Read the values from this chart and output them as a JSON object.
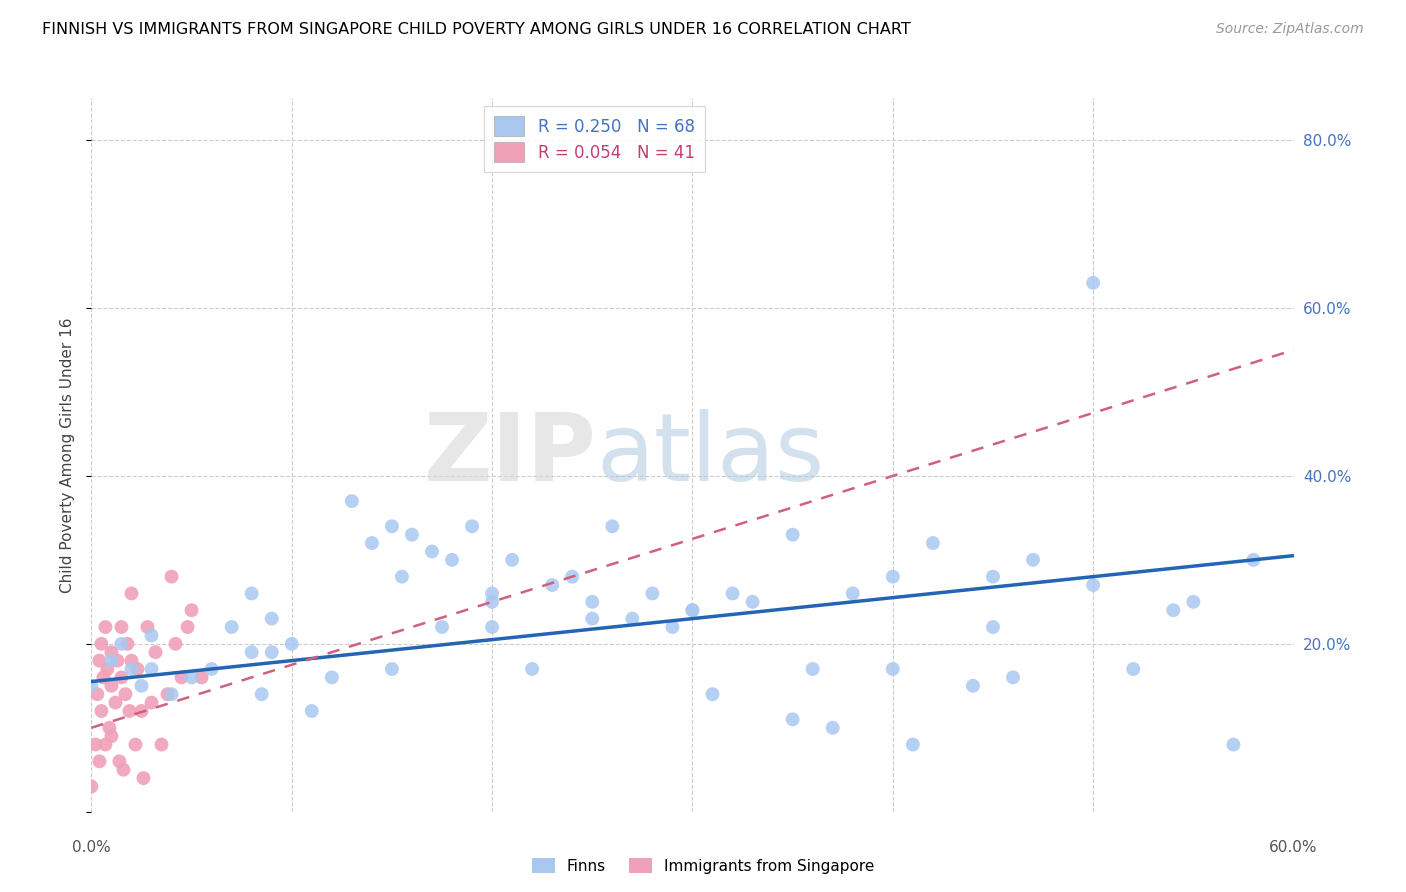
{
  "title": "FINNISH VS IMMIGRANTS FROM SINGAPORE CHILD POVERTY AMONG GIRLS UNDER 16 CORRELATION CHART",
  "source": "Source: ZipAtlas.com",
  "ylabel": "Child Poverty Among Girls Under 16",
  "xlim": [
    0.0,
    0.6
  ],
  "ylim": [
    0.0,
    0.85
  ],
  "grid_yticks": [
    0.0,
    0.2,
    0.4,
    0.6,
    0.8
  ],
  "grid_xticks": [
    0.0,
    0.1,
    0.2,
    0.3,
    0.4,
    0.5,
    0.6
  ],
  "finns_R": 0.25,
  "finns_N": 68,
  "immigrants_R": 0.054,
  "immigrants_N": 41,
  "finn_color": "#a8c8f0",
  "finn_line_color": "#2464b4",
  "immigrant_color": "#f0a0b8",
  "immigrant_line_color": "#d06080",
  "legend_finn_label": "Finns",
  "legend_immigrant_label": "Immigrants from Singapore",
  "finn_line_x0": 0.0,
  "finn_line_y0": 0.155,
  "finn_line_x1": 0.6,
  "finn_line_y1": 0.305,
  "imm_line_x0": 0.0,
  "imm_line_y0": 0.1,
  "imm_line_x1": 0.6,
  "imm_line_y1": 0.55,
  "finns_x": [
    0.0,
    0.01,
    0.015,
    0.02,
    0.025,
    0.03,
    0.04,
    0.05,
    0.06,
    0.07,
    0.08,
    0.085,
    0.09,
    0.1,
    0.11,
    0.12,
    0.13,
    0.14,
    0.15,
    0.155,
    0.16,
    0.17,
    0.175,
    0.18,
    0.19,
    0.2,
    0.2,
    0.21,
    0.22,
    0.23,
    0.24,
    0.25,
    0.26,
    0.27,
    0.28,
    0.29,
    0.3,
    0.31,
    0.32,
    0.33,
    0.35,
    0.36,
    0.37,
    0.38,
    0.4,
    0.41,
    0.42,
    0.44,
    0.45,
    0.46,
    0.47,
    0.5,
    0.52,
    0.54,
    0.55,
    0.57,
    0.58,
    0.09,
    0.15,
    0.2,
    0.25,
    0.3,
    0.35,
    0.4,
    0.45,
    0.5,
    0.03,
    0.08
  ],
  "finns_y": [
    0.15,
    0.18,
    0.2,
    0.17,
    0.15,
    0.17,
    0.14,
    0.16,
    0.17,
    0.22,
    0.26,
    0.14,
    0.23,
    0.2,
    0.12,
    0.16,
    0.37,
    0.32,
    0.34,
    0.28,
    0.33,
    0.31,
    0.22,
    0.3,
    0.34,
    0.26,
    0.22,
    0.3,
    0.17,
    0.27,
    0.28,
    0.23,
    0.34,
    0.23,
    0.26,
    0.22,
    0.24,
    0.14,
    0.26,
    0.25,
    0.11,
    0.17,
    0.1,
    0.26,
    0.17,
    0.08,
    0.32,
    0.15,
    0.28,
    0.16,
    0.3,
    0.63,
    0.17,
    0.24,
    0.25,
    0.08,
    0.3,
    0.19,
    0.17,
    0.25,
    0.25,
    0.24,
    0.33,
    0.28,
    0.22,
    0.27,
    0.21,
    0.19
  ],
  "immigrants_x": [
    0.0,
    0.002,
    0.003,
    0.004,
    0.004,
    0.005,
    0.005,
    0.006,
    0.007,
    0.007,
    0.008,
    0.009,
    0.01,
    0.01,
    0.01,
    0.012,
    0.013,
    0.014,
    0.015,
    0.015,
    0.016,
    0.017,
    0.018,
    0.019,
    0.02,
    0.02,
    0.022,
    0.023,
    0.025,
    0.026,
    0.028,
    0.03,
    0.032,
    0.035,
    0.038,
    0.04,
    0.042,
    0.045,
    0.048,
    0.05,
    0.055
  ],
  "immigrants_y": [
    0.03,
    0.08,
    0.14,
    0.06,
    0.18,
    0.12,
    0.2,
    0.16,
    0.08,
    0.22,
    0.17,
    0.1,
    0.15,
    0.09,
    0.19,
    0.13,
    0.18,
    0.06,
    0.16,
    0.22,
    0.05,
    0.14,
    0.2,
    0.12,
    0.18,
    0.26,
    0.08,
    0.17,
    0.12,
    0.04,
    0.22,
    0.13,
    0.19,
    0.08,
    0.14,
    0.28,
    0.2,
    0.16,
    0.22,
    0.24,
    0.16
  ]
}
